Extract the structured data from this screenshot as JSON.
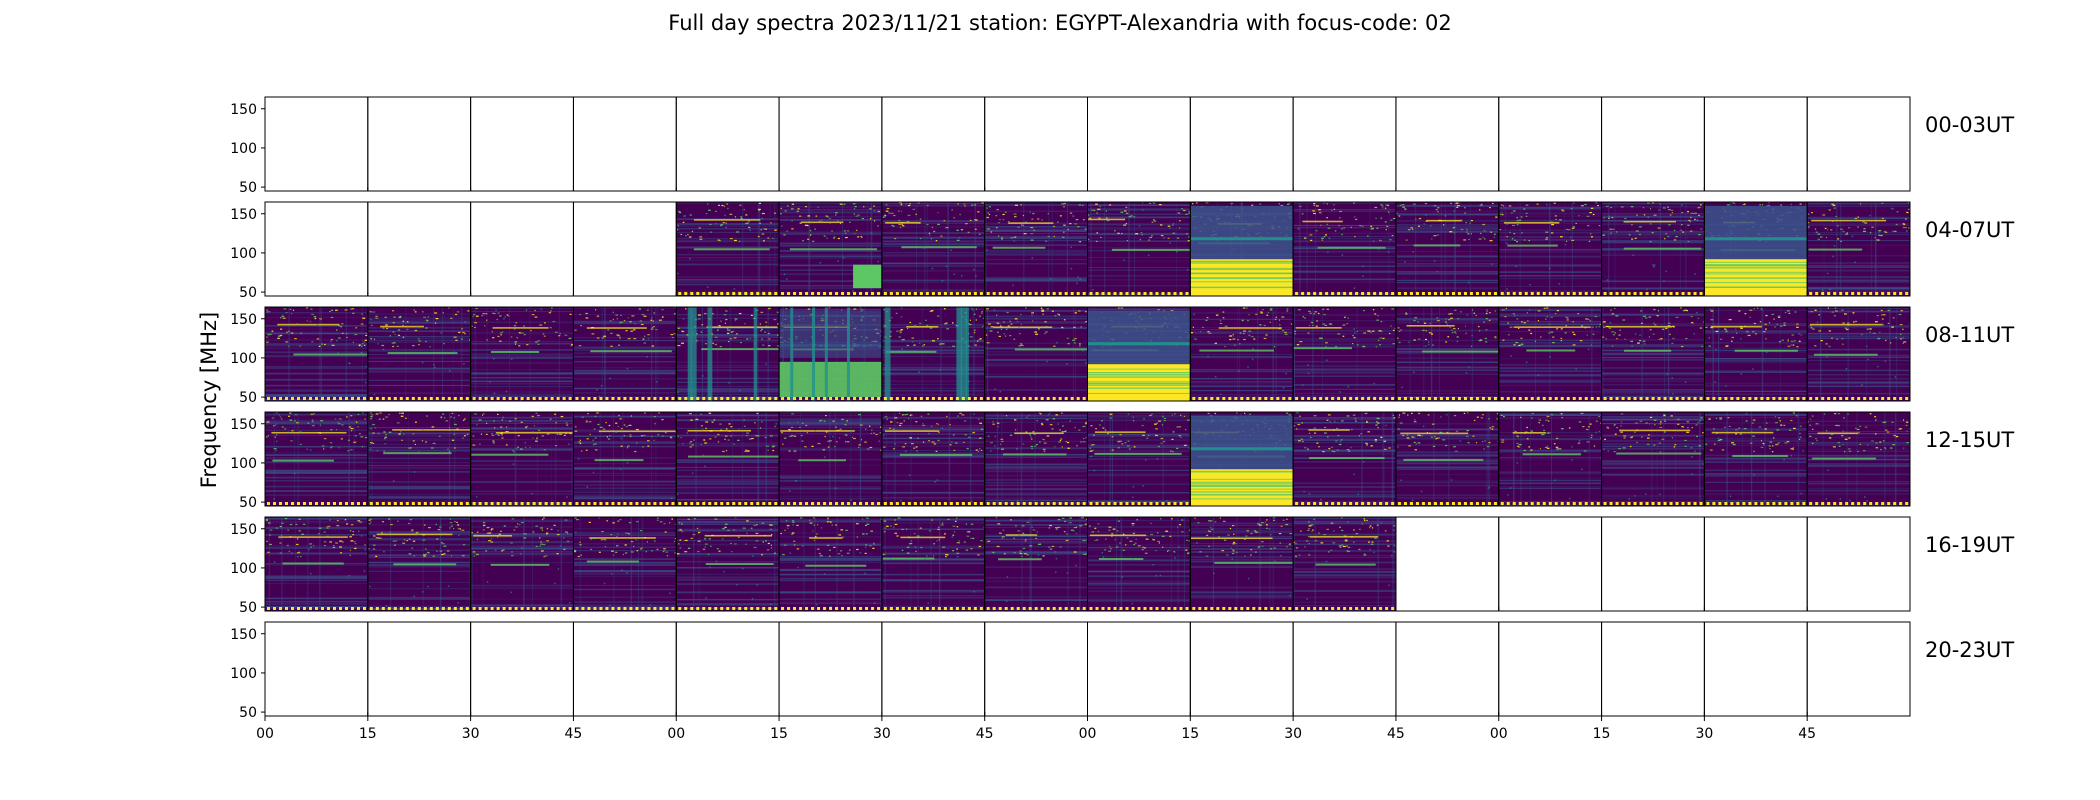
{
  "chart_data": {
    "type": "heatmap",
    "title": "Full day spectra 2023/11/21 station: EGYPT-Alexandria with focus-code: 02",
    "xlabel": "",
    "ylabel": "Frequency [MHz]",
    "ylim": [
      45,
      165
    ],
    "y_ticks": [
      "150",
      "100",
      "50"
    ],
    "y_tick_values": [
      150,
      100,
      50
    ],
    "x_tick_labels": [
      "00",
      "15",
      "30",
      "45",
      "00",
      "15",
      "30",
      "45",
      "00",
      "15",
      "30",
      "45",
      "00",
      "15",
      "30",
      "45"
    ],
    "panels_per_row": 16,
    "panel_minutes": 15,
    "colormap": [
      "#440154",
      "#3b528b",
      "#21908d",
      "#5dc863",
      "#fde725"
    ],
    "rows": [
      {
        "label": "00-03UT",
        "panels": []
      },
      {
        "label": "04-07UT",
        "panels": [
          {
            "index": 4,
            "activity": 0.45
          },
          {
            "index": 5,
            "activity": 0.5,
            "burst": "partial"
          },
          {
            "index": 6,
            "activity": 0.45
          },
          {
            "index": 7,
            "activity": 0.45
          },
          {
            "index": 8,
            "activity": 0.45
          },
          {
            "index": 9,
            "activity": 0.6,
            "burst": "strong"
          },
          {
            "index": 10,
            "activity": 0.45
          },
          {
            "index": 11,
            "activity": 0.45
          },
          {
            "index": 12,
            "activity": 0.45
          },
          {
            "index": 13,
            "activity": 0.5
          },
          {
            "index": 14,
            "activity": 0.6,
            "burst": "strong"
          },
          {
            "index": 15,
            "activity": 0.45
          }
        ]
      },
      {
        "label": "08-11UT",
        "panels": [
          {
            "index": 0,
            "activity": 0.6
          },
          {
            "index": 1,
            "activity": 0.5
          },
          {
            "index": 2,
            "activity": 0.45
          },
          {
            "index": 3,
            "activity": 0.45
          },
          {
            "index": 4,
            "activity": 0.55,
            "burst": "bands"
          },
          {
            "index": 5,
            "activity": 0.6,
            "burst": "medium"
          },
          {
            "index": 6,
            "activity": 0.5,
            "burst": "bands"
          },
          {
            "index": 7,
            "activity": 0.45
          },
          {
            "index": 8,
            "activity": 0.6,
            "burst": "strong"
          },
          {
            "index": 9,
            "activity": 0.45
          },
          {
            "index": 10,
            "activity": 0.45
          },
          {
            "index": 11,
            "activity": 0.45
          },
          {
            "index": 12,
            "activity": 0.45
          },
          {
            "index": 13,
            "activity": 0.45
          },
          {
            "index": 14,
            "activity": 0.45
          },
          {
            "index": 15,
            "activity": 0.45
          }
        ]
      },
      {
        "label": "12-15UT",
        "panels": [
          {
            "index": 0,
            "activity": 0.45
          },
          {
            "index": 1,
            "activity": 0.45
          },
          {
            "index": 2,
            "activity": 0.45
          },
          {
            "index": 3,
            "activity": 0.45
          },
          {
            "index": 4,
            "activity": 0.45
          },
          {
            "index": 5,
            "activity": 0.45
          },
          {
            "index": 6,
            "activity": 0.45
          },
          {
            "index": 7,
            "activity": 0.45
          },
          {
            "index": 8,
            "activity": 0.45
          },
          {
            "index": 9,
            "activity": 0.6,
            "burst": "strong"
          },
          {
            "index": 10,
            "activity": 0.45
          },
          {
            "index": 11,
            "activity": 0.45
          },
          {
            "index": 12,
            "activity": 0.45
          },
          {
            "index": 13,
            "activity": 0.45
          },
          {
            "index": 14,
            "activity": 0.45
          },
          {
            "index": 15,
            "activity": 0.45
          }
        ]
      },
      {
        "label": "16-19UT",
        "panels": [
          {
            "index": 0,
            "activity": 0.55
          },
          {
            "index": 1,
            "activity": 0.5
          },
          {
            "index": 2,
            "activity": 0.45
          },
          {
            "index": 3,
            "activity": 0.45
          },
          {
            "index": 4,
            "activity": 0.45
          },
          {
            "index": 5,
            "activity": 0.45
          },
          {
            "index": 6,
            "activity": 0.45
          },
          {
            "index": 7,
            "activity": 0.45
          },
          {
            "index": 8,
            "activity": 0.45
          },
          {
            "index": 9,
            "activity": 0.45
          },
          {
            "index": 10,
            "activity": 0.5
          }
        ]
      },
      {
        "label": "20-23UT",
        "panels": []
      }
    ]
  }
}
